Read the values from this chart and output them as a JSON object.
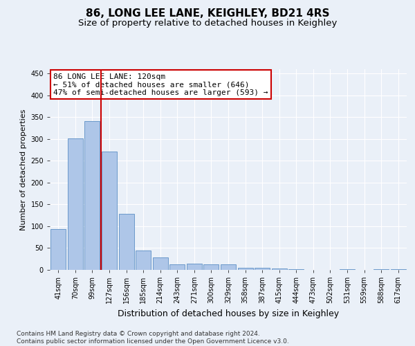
{
  "title": "86, LONG LEE LANE, KEIGHLEY, BD21 4RS",
  "subtitle": "Size of property relative to detached houses in Keighley",
  "xlabel": "Distribution of detached houses by size in Keighley",
  "ylabel": "Number of detached properties",
  "categories": [
    "41sqm",
    "70sqm",
    "99sqm",
    "127sqm",
    "156sqm",
    "185sqm",
    "214sqm",
    "243sqm",
    "271sqm",
    "300sqm",
    "329sqm",
    "358sqm",
    "387sqm",
    "415sqm",
    "444sqm",
    "473sqm",
    "502sqm",
    "531sqm",
    "559sqm",
    "588sqm",
    "617sqm"
  ],
  "values": [
    93,
    302,
    341,
    272,
    128,
    45,
    28,
    13,
    14,
    13,
    12,
    5,
    4,
    3,
    1,
    0,
    0,
    1,
    0,
    1,
    1
  ],
  "bar_color": "#aec6e8",
  "bar_edge_color": "#5b8ec4",
  "vline_position": 2.5,
  "vline_color": "#cc0000",
  "annotation_text": "86 LONG LEE LANE: 120sqm\n← 51% of detached houses are smaller (646)\n47% of semi-detached houses are larger (593) →",
  "annotation_box_color": "#ffffff",
  "annotation_box_edge": "#cc0000",
  "ylim": [
    0,
    460
  ],
  "yticks": [
    0,
    50,
    100,
    150,
    200,
    250,
    300,
    350,
    400,
    450
  ],
  "background_color": "#eaf0f8",
  "grid_color": "#ffffff",
  "footer": "Contains HM Land Registry data © Crown copyright and database right 2024.\nContains public sector information licensed under the Open Government Licence v3.0.",
  "title_fontsize": 11,
  "subtitle_fontsize": 9.5,
  "xlabel_fontsize": 9,
  "ylabel_fontsize": 8,
  "tick_fontsize": 7,
  "annotation_fontsize": 8,
  "footer_fontsize": 6.5
}
